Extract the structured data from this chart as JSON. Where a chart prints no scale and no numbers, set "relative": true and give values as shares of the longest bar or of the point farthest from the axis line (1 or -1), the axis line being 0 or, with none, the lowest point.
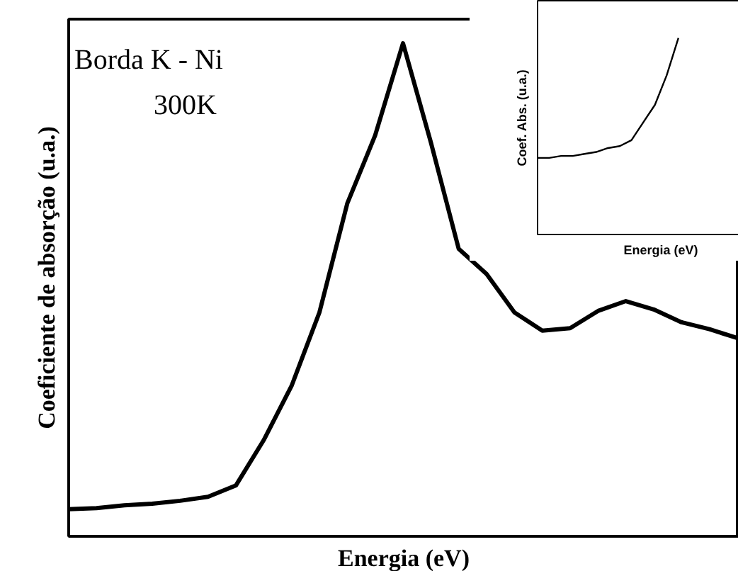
{
  "chart_data": [
    {
      "type": "line",
      "relative": true,
      "xlabel": "Energia (eV)",
      "ylabel": "Coeficiente de absorção (u.a.)",
      "annotations": [
        "Borda K - Ni",
        "300K"
      ],
      "categories": [
        null,
        null,
        null,
        null,
        null,
        null,
        null,
        null,
        null,
        null,
        null,
        null,
        null,
        null,
        null,
        null,
        null,
        null,
        null,
        null,
        null,
        null,
        null,
        null,
        null
      ],
      "series": [
        {
          "color": "#000000",
          "values": [
            0.055,
            0.057,
            0.063,
            0.066,
            0.072,
            0.08,
            0.103,
            0.195,
            0.305,
            0.454,
            0.675,
            0.813,
            1.0,
            0.799,
            0.583,
            0.532,
            0.454,
            0.417,
            0.422,
            0.457,
            0.477,
            0.46,
            0.434,
            0.42,
            0.402
          ]
        }
      ]
    },
    {
      "type": "line",
      "relative": true,
      "xlabel": "Energia (eV)",
      "ylabel": "Coef. Abs. (u.a.)",
      "categories": [
        null,
        null,
        null,
        null,
        null,
        null,
        null,
        null,
        null,
        null,
        null,
        null,
        null,
        null,
        null,
        null,
        null,
        null,
        null,
        null,
        null,
        null
      ],
      "series": [
        {
          "color": "#000000",
          "values": [
            0.39,
            0.39,
            0.4,
            0.4,
            0.41,
            0.42,
            0.44,
            0.45,
            0.48,
            0.57,
            0.66,
            0.81,
            1.0,
            null,
            null,
            null,
            null,
            null,
            null,
            null,
            null,
            null
          ]
        }
      ]
    }
  ]
}
